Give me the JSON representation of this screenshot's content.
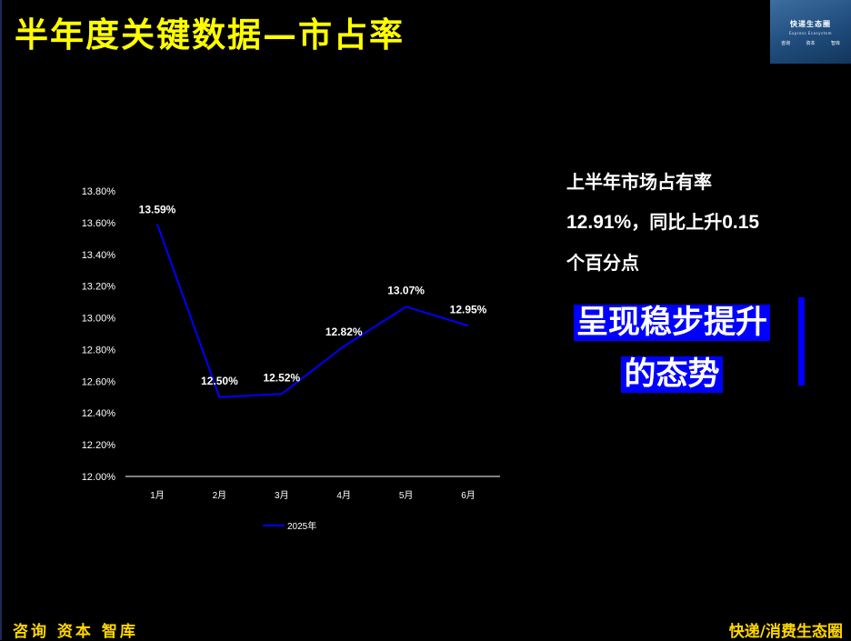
{
  "header": {
    "title": "半年度关键数据—市占率"
  },
  "logo": {
    "name": "快递生态圈",
    "subtitle": "Express Ecosystem",
    "tags": [
      "咨询",
      "资本",
      "智库"
    ]
  },
  "chart_data": {
    "type": "line",
    "categories": [
      "1月",
      "2月",
      "3月",
      "4月",
      "5月",
      "6月"
    ],
    "series": [
      {
        "name": "2025年",
        "values": [
          13.59,
          12.5,
          12.52,
          12.82,
          13.07,
          12.95
        ],
        "color": "#0000ff"
      }
    ],
    "data_labels": [
      "13.59%",
      "12.50%",
      "12.52%",
      "12.82%",
      "13.07%",
      "12.95%"
    ],
    "y_ticks": [
      "12.00%",
      "12.20%",
      "12.40%",
      "12.60%",
      "12.80%",
      "13.00%",
      "13.20%",
      "13.40%",
      "13.60%",
      "13.80%"
    ],
    "ylim": [
      12.0,
      13.8
    ],
    "title": "",
    "xlabel": "",
    "ylabel": "",
    "grid": false,
    "legend_position": "bottom"
  },
  "summary": {
    "line1": "上半年市场占有率",
    "line2_value": "12.91%",
    "line2_text": "，同比上升",
    "line2_delta": "0.15",
    "line3": "个百分点"
  },
  "emphasis": {
    "line1": "呈现稳步提升",
    "line2": "的态势",
    "color": "#0000ff"
  },
  "footer": {
    "left": "咨询 资本 智库",
    "right": "快递/消费生态圈"
  },
  "colors": {
    "title": "#ffff00",
    "footer": "#ffd700",
    "background": "#000000"
  }
}
